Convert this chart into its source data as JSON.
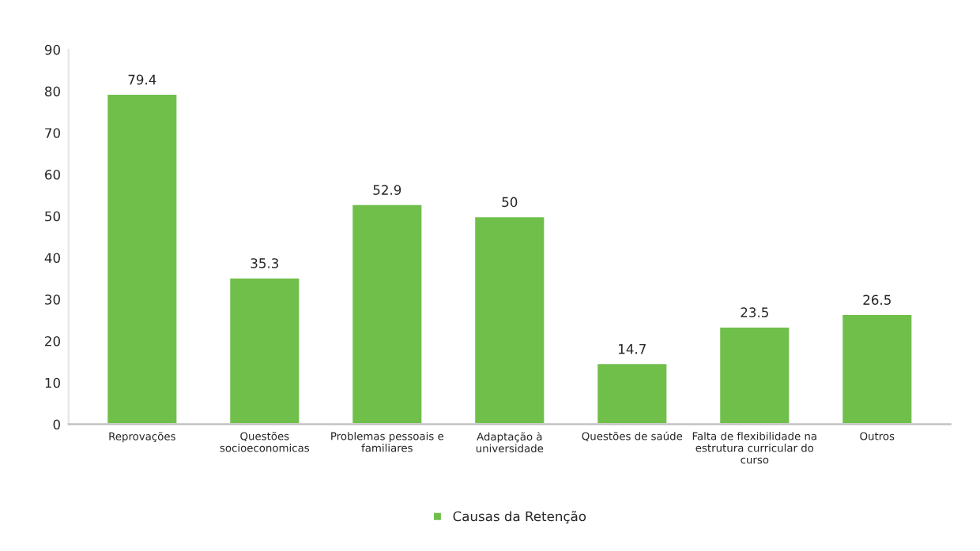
{
  "chart_data": {
    "type": "bar",
    "categories": [
      "Reprovações",
      "Questões\nsocioeconomicas",
      "Problemas pessoais e\nfamiliares",
      "Adaptação à\nuniversidade",
      "Questões de saúde",
      "Falta de flexibilidade na\nestrutura curricular do\ncurso",
      "Outros"
    ],
    "series": [
      {
        "name": "Causas da Retenção",
        "color": "#70bf4b",
        "values": [
          79.4,
          35.3,
          52.9,
          50,
          14.7,
          23.5,
          26.5
        ]
      }
    ],
    "ylim": [
      0,
      90
    ],
    "yticks": [
      0,
      10,
      20,
      30,
      40,
      50,
      60,
      70,
      80,
      90
    ],
    "data_labels": true,
    "legend": "bottom",
    "grid": false
  }
}
